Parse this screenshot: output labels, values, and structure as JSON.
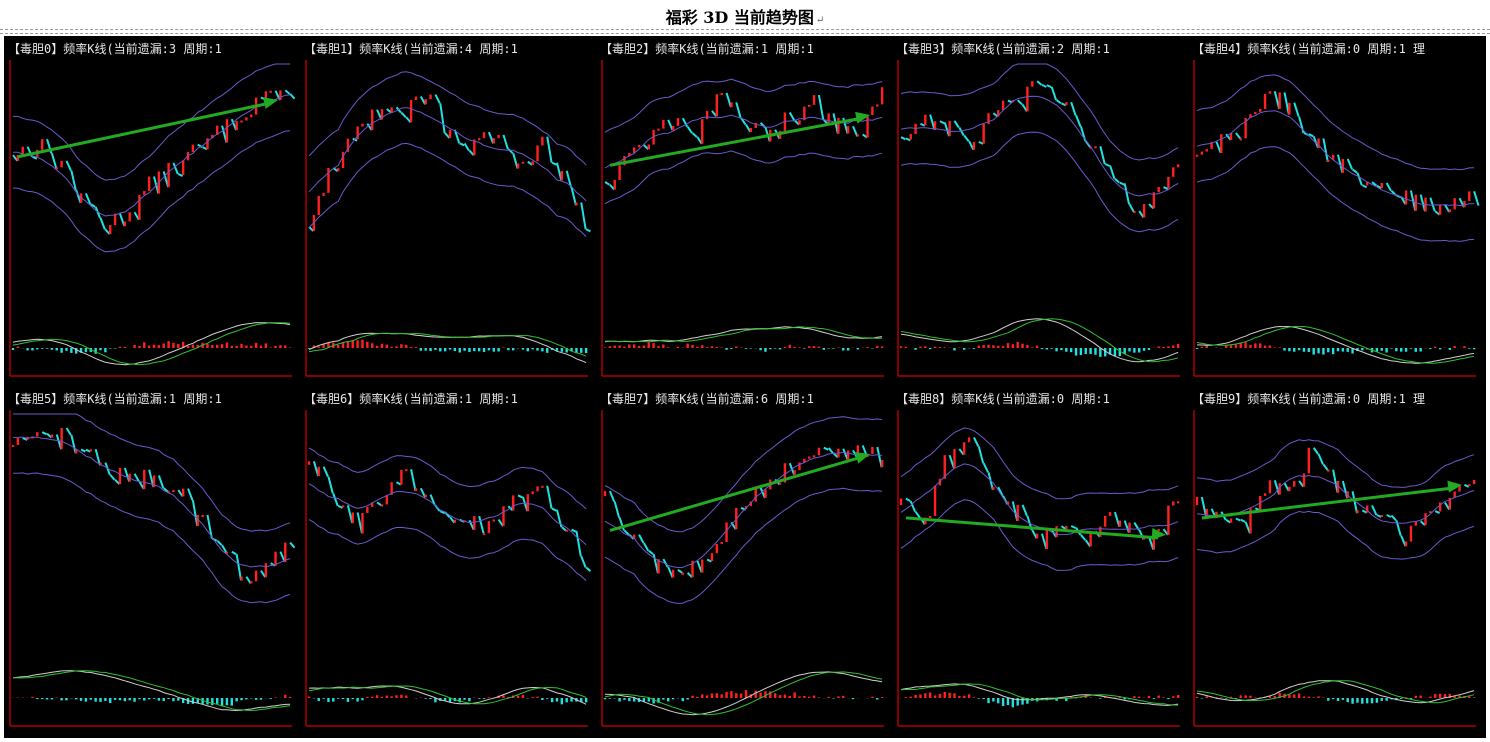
{
  "page": {
    "title": "福彩 3D 当前趋势图",
    "return_mark": "↵"
  },
  "colors": {
    "background": "#000000",
    "frame": "#b00000",
    "candle_up": "#ff2020",
    "candle_down": "#20e0e0",
    "band": "#6a5acd",
    "macd_white": "#d0d0d0",
    "macd_green": "#30c030",
    "arrow": "#22aa22",
    "title_text": "#e6e6e6"
  },
  "chart_data": [
    {
      "type": "candlestick",
      "title": "【毒胆0】频率K线(当前遗漏:3 周期:1",
      "trend": [
        0.62,
        0.66,
        0.58,
        0.4,
        0.3,
        0.36,
        0.48,
        0.56,
        0.64,
        0.72,
        0.82,
        0.9,
        0.84
      ],
      "arrow": true
    },
    {
      "type": "candlestick",
      "title": "【毒胆1】频率K线(当前遗漏:4 周期:1",
      "trend": [
        0.3,
        0.55,
        0.72,
        0.82,
        0.78,
        0.9,
        0.72,
        0.64,
        0.7,
        0.58,
        0.66,
        0.5,
        0.3
      ],
      "arrow": false
    },
    {
      "type": "candlestick",
      "title": "【毒胆2】频率K线(当前遗漏:1 周期:1",
      "trend": [
        0.5,
        0.62,
        0.7,
        0.78,
        0.72,
        0.86,
        0.76,
        0.7,
        0.8,
        0.84,
        0.76,
        0.72,
        0.88
      ],
      "arrow": true
    },
    {
      "type": "candlestick",
      "title": "【毒胆3】频率K线(当前遗漏:2 周期:1",
      "trend": [
        0.7,
        0.78,
        0.74,
        0.66,
        0.8,
        0.84,
        0.92,
        0.86,
        0.7,
        0.52,
        0.36,
        0.42,
        0.58
      ],
      "arrow": false
    },
    {
      "type": "candlestick",
      "title": "【毒胆4】频率K线(当前遗漏:0 周期:1 理",
      "trend": [
        0.62,
        0.68,
        0.74,
        0.9,
        0.82,
        0.68,
        0.58,
        0.5,
        0.46,
        0.42,
        0.38,
        0.4,
        0.44
      ],
      "arrow": false
    },
    {
      "type": "candlestick",
      "title": "【毒胆5】频率K线(当前遗漏:1 周期:1",
      "trend": [
        0.88,
        0.9,
        0.92,
        0.86,
        0.78,
        0.72,
        0.74,
        0.7,
        0.56,
        0.42,
        0.3,
        0.34,
        0.42
      ],
      "arrow": false
    },
    {
      "type": "candlestick",
      "title": "【毒胆6】频率K线(当前遗漏:1 周期:1",
      "trend": [
        0.8,
        0.66,
        0.54,
        0.6,
        0.76,
        0.66,
        0.58,
        0.52,
        0.56,
        0.62,
        0.66,
        0.54,
        0.36
      ],
      "arrow": false
    },
    {
      "type": "candlestick",
      "title": "【毒胆7】频率K线(当前遗漏:6 周期:1",
      "trend": [
        0.66,
        0.5,
        0.36,
        0.3,
        0.36,
        0.48,
        0.6,
        0.7,
        0.78,
        0.86,
        0.84,
        0.88,
        0.8
      ],
      "arrow": true
    },
    {
      "type": "candlestick",
      "title": "【毒胆8】频率K线(当前遗漏:0 周期:1",
      "trend": [
        0.62,
        0.58,
        0.82,
        0.88,
        0.7,
        0.58,
        0.46,
        0.52,
        0.48,
        0.56,
        0.5,
        0.46,
        0.66
      ],
      "arrow": true
    },
    {
      "type": "candlestick",
      "title": "【毒胆9】频率K线(当前遗漏:0 周期:1 理",
      "trend": [
        0.62,
        0.56,
        0.52,
        0.72,
        0.66,
        0.84,
        0.72,
        0.6,
        0.54,
        0.48,
        0.6,
        0.66,
        0.7
      ],
      "arrow": true
    }
  ]
}
